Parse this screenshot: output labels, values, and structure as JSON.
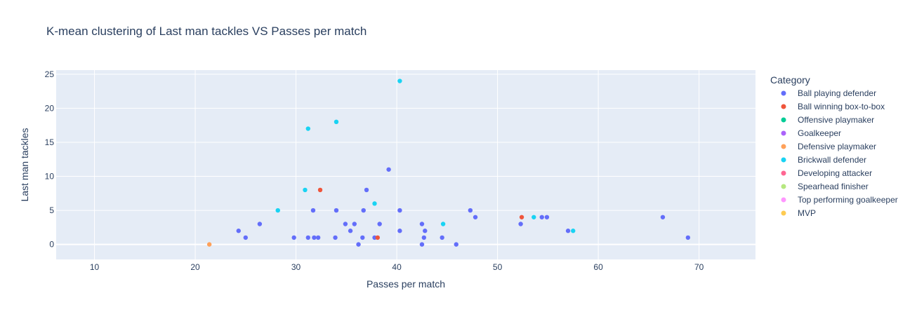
{
  "chart_data": {
    "type": "scatter",
    "title": "K-mean clustering of Last man tackles VS Passes per match",
    "xlabel": "Passes per match",
    "ylabel": "Last man tackles",
    "xlim": [
      6.2,
      75.6
    ],
    "ylim": [
      -2.2,
      25.6
    ],
    "xticks": [
      10,
      20,
      30,
      40,
      50,
      60,
      70
    ],
    "yticks": [
      0,
      5,
      10,
      15,
      20,
      25
    ],
    "grid": true,
    "legend_title": "Category",
    "legend_position": "right",
    "series": [
      {
        "name": "Ball playing defender",
        "color": "#636efa",
        "points": [
          [
            24.3,
            2
          ],
          [
            25.0,
            1
          ],
          [
            26.4,
            3
          ],
          [
            29.8,
            1
          ],
          [
            31.2,
            1
          ],
          [
            31.7,
            5
          ],
          [
            31.8,
            1
          ],
          [
            32.2,
            1
          ],
          [
            33.9,
            1
          ],
          [
            34.0,
            5
          ],
          [
            34.9,
            3
          ],
          [
            35.4,
            2
          ],
          [
            35.8,
            3
          ],
          [
            36.2,
            0
          ],
          [
            36.6,
            1
          ],
          [
            36.7,
            5
          ],
          [
            37.0,
            8
          ],
          [
            37.8,
            1
          ],
          [
            38.3,
            3
          ],
          [
            39.2,
            11
          ],
          [
            40.3,
            5
          ],
          [
            40.3,
            2
          ],
          [
            42.5,
            3
          ],
          [
            42.5,
            0
          ],
          [
            42.7,
            1
          ],
          [
            42.8,
            2
          ],
          [
            44.5,
            1
          ],
          [
            45.9,
            0
          ],
          [
            47.3,
            5
          ],
          [
            47.8,
            4
          ],
          [
            52.3,
            3
          ],
          [
            54.4,
            4
          ],
          [
            54.9,
            4
          ],
          [
            57.0,
            2
          ],
          [
            66.4,
            4
          ],
          [
            68.9,
            1
          ]
        ]
      },
      {
        "name": "Ball winning box-to-box",
        "color": "#ef553b",
        "points": [
          [
            32.4,
            8
          ],
          [
            38.1,
            1
          ],
          [
            52.4,
            4
          ]
        ]
      },
      {
        "name": "Offensive playmaker",
        "color": "#00cc96",
        "points": []
      },
      {
        "name": "Goalkeeper",
        "color": "#ab63fa",
        "points": []
      },
      {
        "name": "Defensive playmaker",
        "color": "#ffa15a",
        "points": [
          [
            21.4,
            0
          ]
        ]
      },
      {
        "name": "Brickwall defender",
        "color": "#19d3f3",
        "points": [
          [
            28.2,
            5
          ],
          [
            30.9,
            8
          ],
          [
            31.2,
            17
          ],
          [
            34.0,
            18
          ],
          [
            37.8,
            6
          ],
          [
            40.3,
            24
          ],
          [
            44.6,
            3
          ],
          [
            53.6,
            4
          ],
          [
            57.5,
            2
          ]
        ]
      },
      {
        "name": "Developing attacker",
        "color": "#ff6692",
        "points": []
      },
      {
        "name": "Spearhead finisher",
        "color": "#b6e880",
        "points": []
      },
      {
        "name": "Top performing goalkeeper",
        "color": "#ff97ff",
        "points": []
      },
      {
        "name": "MVP",
        "color": "#fecb52",
        "points": []
      }
    ]
  }
}
